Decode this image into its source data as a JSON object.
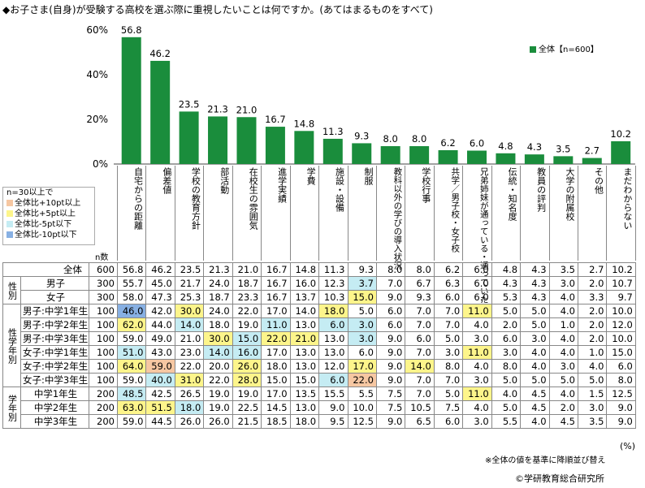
{
  "title": "◆お子さま(自身)が受験する高校を選ぶ際に重視したいことは何ですか。(あてはまるものをすべて)",
  "colors": {
    "bar": "#1a8d3c",
    "plus10": "#f6c7a2",
    "plus5": "#fdf58b",
    "minus5": "#c5ecf3",
    "minus10": "#87b0e3"
  },
  "legend_box": {
    "heading": "n=30以上で",
    "items": [
      {
        "label": "全体比+10pt以上",
        "color_key": "plus10"
      },
      {
        "label": "全体比+5pt以上",
        "color_key": "plus5"
      },
      {
        "label": "全体比-5pt以下",
        "color_key": "minus5"
      },
      {
        "label": "全体比-10pt以下",
        "color_key": "minus10"
      }
    ]
  },
  "chart_data": {
    "type": "bar",
    "categories": [
      "自宅からの距離",
      "偏差値",
      "学校の教育方針",
      "部活動",
      "在校生の雰囲気",
      "進学実績",
      "学費",
      "施設・設備",
      "制服",
      "教科以外の学びの導入状況",
      "学校行事",
      "共学/男子校・女子校",
      "兄弟姉妹が通っている・通っていた",
      "伝統・知名度",
      "教員の評判",
      "大学の附属校",
      "その他",
      "まだわからない"
    ],
    "series": [
      {
        "name": "全体【n=600】",
        "values": [
          56.8,
          46.2,
          23.5,
          21.3,
          21.0,
          16.7,
          14.8,
          11.3,
          9.3,
          8.0,
          8.0,
          6.2,
          6.0,
          4.8,
          4.3,
          3.5,
          2.7,
          10.2
        ]
      }
    ],
    "y_ticks": [
      "0%",
      "20%",
      "40%",
      "60%"
    ],
    "ylim": [
      0,
      60
    ]
  },
  "table": {
    "n_label": "n数",
    "unit": "(%)",
    "rows": [
      {
        "group": "",
        "label": "全体",
        "n": "600",
        "values": [
          "56.8",
          "46.2",
          "23.5",
          "21.3",
          "21.0",
          "16.7",
          "14.8",
          "11.3",
          "9.3",
          "8.0",
          "8.0",
          "6.2",
          "6.0",
          "4.8",
          "4.3",
          "3.5",
          "2.7",
          "10.2"
        ],
        "hl": {}
      },
      {
        "group": "性別",
        "label": "男子",
        "n": "300",
        "values": [
          "55.7",
          "45.0",
          "21.7",
          "24.0",
          "18.7",
          "16.7",
          "16.0",
          "12.3",
          "3.7",
          "7.0",
          "6.7",
          "6.3",
          "6.0",
          "4.3",
          "4.3",
          "3.0",
          "2.0",
          "10.7"
        ],
        "hl": {
          "8": "minus5"
        }
      },
      {
        "group": "",
        "label": "女子",
        "n": "300",
        "values": [
          "58.0",
          "47.3",
          "25.3",
          "18.7",
          "23.3",
          "16.7",
          "13.7",
          "10.3",
          "15.0",
          "9.0",
          "9.3",
          "6.0",
          "6.0",
          "5.3",
          "4.3",
          "4.0",
          "3.3",
          "9.7"
        ],
        "hl": {
          "8": "plus5"
        }
      },
      {
        "group": "性学年別",
        "label": "男子:中学1年生",
        "n": "100",
        "values": [
          "46.0",
          "42.0",
          "30.0",
          "24.0",
          "22.0",
          "17.0",
          "14.0",
          "18.0",
          "5.0",
          "6.0",
          "7.0",
          "7.0",
          "11.0",
          "5.0",
          "5.0",
          "4.0",
          "2.0",
          "10.0"
        ],
        "hl": {
          "0": "minus10",
          "2": "plus5",
          "7": "plus5",
          "12": "plus5"
        }
      },
      {
        "group": "",
        "label": "男子:中学2年生",
        "n": "100",
        "values": [
          "62.0",
          "44.0",
          "14.0",
          "18.0",
          "19.0",
          "11.0",
          "13.0",
          "6.0",
          "3.0",
          "6.0",
          "7.0",
          "7.0",
          "4.0",
          "2.0",
          "5.0",
          "1.0",
          "2.0",
          "12.0"
        ],
        "hl": {
          "0": "plus5",
          "2": "minus5",
          "5": "minus5",
          "7": "minus5",
          "8": "minus5"
        }
      },
      {
        "group": "",
        "label": "男子:中学3年生",
        "n": "100",
        "values": [
          "59.0",
          "49.0",
          "21.0",
          "30.0",
          "15.0",
          "22.0",
          "21.0",
          "13.0",
          "3.0",
          "9.0",
          "6.0",
          "5.0",
          "3.0",
          "6.0",
          "3.0",
          "4.0",
          "2.0",
          "10.0"
        ],
        "hl": {
          "3": "plus5",
          "4": "minus5",
          "5": "plus5",
          "6": "plus5",
          "8": "minus5"
        }
      },
      {
        "group": "",
        "label": "女子:中学1年生",
        "n": "100",
        "values": [
          "51.0",
          "43.0",
          "23.0",
          "14.0",
          "16.0",
          "17.0",
          "13.0",
          "13.0",
          "6.0",
          "9.0",
          "7.0",
          "3.0",
          "11.0",
          "3.0",
          "4.0",
          "4.0",
          "1.0",
          "15.0"
        ],
        "hl": {
          "0": "minus5",
          "3": "minus5",
          "4": "minus5",
          "12": "plus5"
        }
      },
      {
        "group": "",
        "label": "女子:中学2年生",
        "n": "100",
        "values": [
          "64.0",
          "59.0",
          "22.0",
          "20.0",
          "26.0",
          "18.0",
          "13.0",
          "12.0",
          "17.0",
          "9.0",
          "14.0",
          "8.0",
          "4.0",
          "8.0",
          "4.0",
          "3.0",
          "4.0",
          "6.0"
        ],
        "hl": {
          "0": "plus5",
          "1": "plus10",
          "4": "plus5",
          "8": "plus5",
          "10": "plus5"
        }
      },
      {
        "group": "",
        "label": "女子:中学3年生",
        "n": "100",
        "values": [
          "59.0",
          "40.0",
          "31.0",
          "22.0",
          "28.0",
          "15.0",
          "15.0",
          "6.0",
          "22.0",
          "9.0",
          "7.0",
          "7.0",
          "3.0",
          "5.0",
          "5.0",
          "5.0",
          "5.0",
          "8.0"
        ],
        "hl": {
          "1": "minus5",
          "2": "plus5",
          "4": "plus5",
          "7": "minus5",
          "8": "plus10"
        }
      },
      {
        "group": "学年別",
        "label": "中学1年生",
        "n": "200",
        "values": [
          "48.5",
          "42.5",
          "26.5",
          "19.0",
          "19.0",
          "17.0",
          "13.5",
          "15.5",
          "5.5",
          "7.5",
          "7.0",
          "5.0",
          "11.0",
          "4.0",
          "4.5",
          "4.0",
          "1.5",
          "12.5"
        ],
        "hl": {
          "0": "minus5",
          "12": "plus5"
        }
      },
      {
        "group": "",
        "label": "中学2年生",
        "n": "200",
        "values": [
          "63.0",
          "51.5",
          "18.0",
          "19.0",
          "22.5",
          "14.5",
          "13.0",
          "9.0",
          "10.0",
          "7.5",
          "10.5",
          "7.5",
          "4.0",
          "5.0",
          "4.5",
          "2.0",
          "3.0",
          "9.0"
        ],
        "hl": {
          "0": "plus5",
          "1": "plus5",
          "2": "minus5"
        }
      },
      {
        "group": "",
        "label": "中学3年生",
        "n": "200",
        "values": [
          "59.0",
          "44.5",
          "26.0",
          "26.0",
          "21.5",
          "18.5",
          "18.0",
          "9.5",
          "12.5",
          "9.0",
          "6.5",
          "6.0",
          "3.0",
          "5.5",
          "4.0",
          "4.5",
          "3.5",
          "9.0"
        ],
        "hl": {}
      }
    ]
  },
  "footer": {
    "note": "※全体の値を基準に降順並び替え",
    "copyright": "©学研教育総合研究所"
  }
}
